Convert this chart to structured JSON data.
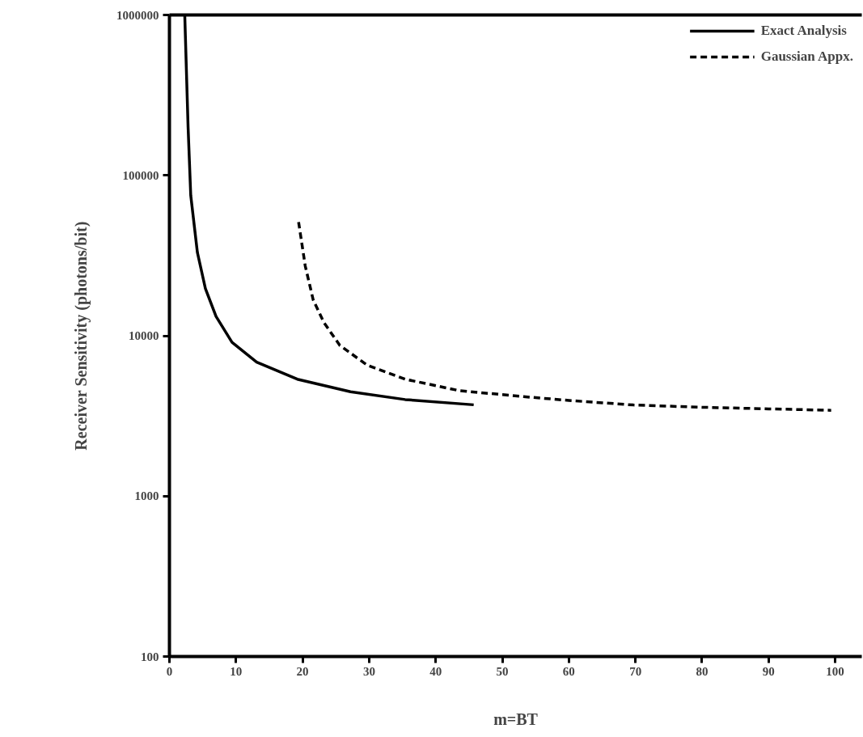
{
  "chart_data": {
    "type": "line",
    "xlabel": "m=BT",
    "ylabel": "Receiver Sensitivity (photons/bit)",
    "log": "y",
    "legend": "top right",
    "xlim": [
      0,
      104
    ],
    "ylim": [
      100,
      1000000
    ],
    "xticks": [
      0,
      10,
      20,
      30,
      40,
      50,
      60,
      70,
      80,
      90,
      100
    ],
    "yticks": [
      100,
      1000,
      10000,
      100000,
      1000000
    ],
    "series": [
      {
        "name": "Exact Analysis",
        "color": "#000000",
        "line_style": "solid",
        "x": [
          2.3,
          2.8,
          3.2,
          4.2,
          5.4,
          7.0,
          9.4,
          13.1,
          19.2,
          27.2,
          35.4,
          45.7
        ],
        "values": [
          1000000,
          200000,
          75000,
          33000,
          19700,
          13200,
          9100,
          6840,
          5360,
          4470,
          4000,
          3710
        ]
      },
      {
        "name": "Gaussian Appx.",
        "color": "#000000",
        "line_style": "dashed",
        "x": [
          19.4,
          20.4,
          21.6,
          23.2,
          25.6,
          29.7,
          35.4,
          43.5,
          53.2,
          60,
          69.7,
          80,
          90,
          99.4
        ],
        "values": [
          51200,
          27200,
          16700,
          12100,
          8700,
          6560,
          5360,
          4550,
          4170,
          3950,
          3700,
          3580,
          3500,
          3430
        ]
      }
    ]
  }
}
